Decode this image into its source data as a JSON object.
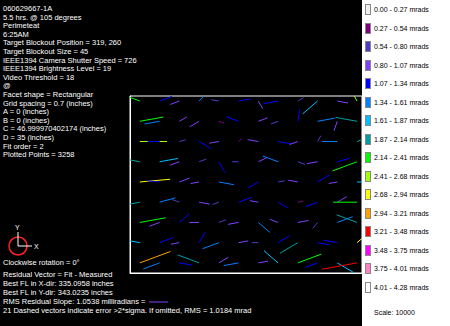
{
  "chart_data": {
    "type": "vector",
    "info_lines": [
      "060629667-1A",
      "5.5 hrs. @ 105 degrees",
      "Perimeteat",
      "6:25AM",
      "Target Blockout Position = 319, 260",
      "Target Blockout Size = 45",
      "IEEE1394 Camera Shutter Speed = 726",
      "IEEE1394 Brightness Level = 19",
      "Video Threshold = 18",
      "@",
      "Facet shape = Rectangular",
      "Grid spacing = 0.7 (inches)",
      "A = 0 (inches)",
      "B = 0 (inches)",
      "C = 46.999970402174 (inches)",
      "D = 35 (inches)",
      "Fit order = 2",
      "Plotted Points = 3258"
    ],
    "footer_lines": [
      "Clockwise rotation = 0°",
      "Residual Vector = Fit - Measured",
      "Best FL in X-dir: 335.0958 inches",
      "Best FL in Y-dir: 343.0235 inches",
      "RMS Residual Slope: 1.0538 milliradians =",
      "21 Dashed vectors indicate error >2*sigma. If omitted, RMS = 1.0184 mrad"
    ],
    "scale_note": "Scale: 10000",
    "compass": [
      "X",
      "Y"
    ],
    "xlim": [
      0,
      47
    ],
    "ylim": [
      0,
      35
    ],
    "tick_labels": false,
    "grid": false,
    "color_bins": [
      {
        "range": [
          0.0,
          0.27
        ],
        "label": "0.00 - 0.27 mrads",
        "color": "#f0f0f0"
      },
      {
        "range": [
          0.27,
          0.54
        ],
        "label": "0.27 - 0.54 mrads",
        "color": "#800080"
      },
      {
        "range": [
          0.54,
          0.8
        ],
        "label": "0.54 - 0.80 mrads",
        "color": "#4b3cc8"
      },
      {
        "range": [
          0.8,
          1.07
        ],
        "label": "0.80 - 1.07 mrads",
        "color": "#8040ff"
      },
      {
        "range": [
          1.07,
          1.34
        ],
        "label": "1.07 - 1.34 mrads",
        "color": "#0000ff"
      },
      {
        "range": [
          1.34,
          1.61
        ],
        "label": "1.34 - 1.61 mrads",
        "color": "#0080ff"
      },
      {
        "range": [
          1.61,
          1.87
        ],
        "label": "1.61 - 1.87 mrads",
        "color": "#00c0ff"
      },
      {
        "range": [
          1.87,
          2.14
        ],
        "label": "1.87 - 2.14 mrads",
        "color": "#00a0a0"
      },
      {
        "range": [
          2.14,
          2.41
        ],
        "label": "2.14 - 2.41 mrads",
        "color": "#00ff00"
      },
      {
        "range": [
          2.41,
          2.68
        ],
        "label": "2.41 - 2.68 mrads",
        "color": "#a0ff00"
      },
      {
        "range": [
          2.68,
          2.94
        ],
        "label": "2.68 - 2.94 mrads",
        "color": "#ffff00"
      },
      {
        "range": [
          2.94,
          3.21
        ],
        "label": "2.94 - 3.21 mrads",
        "color": "#ffa000"
      },
      {
        "range": [
          3.21,
          3.48
        ],
        "label": "3.21 - 3.48 mrads",
        "color": "#ff0000"
      },
      {
        "range": [
          3.48,
          3.75
        ],
        "label": "3.48 - 3.75 mrads",
        "color": "#ff00ff"
      },
      {
        "range": [
          3.75,
          4.01
        ],
        "label": "3.75 - 4.01 mrads",
        "color": "#ff80c0"
      },
      {
        "range": [
          4.01,
          4.28
        ],
        "label": "4.01 - 4.28 mrads",
        "color": "#ffffff"
      }
    ],
    "vectors": {
      "x": [
        2,
        6,
        10,
        14,
        18,
        22,
        26,
        30,
        34,
        38,
        42,
        46,
        2,
        6,
        10,
        14,
        18,
        22,
        26,
        30,
        34,
        38,
        42,
        46,
        2,
        6,
        10,
        14,
        18,
        22,
        26,
        30,
        34,
        38,
        42,
        46,
        2,
        6,
        10,
        14,
        18,
        22,
        26,
        30,
        34,
        38,
        42,
        46,
        2,
        6,
        10,
        14,
        18,
        26,
        30,
        34,
        38,
        42,
        46,
        2,
        6,
        10,
        14,
        18,
        22,
        26,
        30,
        34,
        38,
        42,
        46,
        2,
        6,
        10,
        14,
        18,
        22,
        26,
        30,
        34,
        38,
        42,
        46,
        2,
        6,
        10,
        14,
        18,
        22,
        26,
        30,
        34,
        38,
        42,
        46,
        2,
        6,
        10,
        14,
        18,
        22,
        26,
        30,
        34,
        38,
        42,
        46
      ],
      "y": [
        34,
        34,
        34,
        34,
        34,
        34,
        34,
        34,
        34,
        34,
        34,
        34,
        30,
        30,
        30,
        30,
        30,
        30,
        30,
        30,
        30,
        30,
        30,
        30,
        26,
        26,
        26,
        26,
        26,
        26,
        26,
        26,
        26,
        26,
        26,
        26,
        22,
        22,
        22,
        22,
        22,
        22,
        22,
        22,
        22,
        22,
        22,
        22,
        18,
        18,
        18,
        18,
        18,
        18,
        18,
        18,
        18,
        18,
        18,
        14,
        14,
        14,
        14,
        14,
        14,
        14,
        14,
        14,
        14,
        14,
        14,
        10,
        10,
        10,
        10,
        10,
        10,
        10,
        10,
        10,
        10,
        10,
        10,
        6,
        6,
        6,
        6,
        6,
        6,
        6,
        6,
        6,
        6,
        6,
        6,
        2,
        2,
        2,
        2,
        2,
        2,
        2,
        2,
        2,
        2,
        2,
        2
      ],
      "angle": [
        160,
        20,
        200,
        45,
        170,
        10,
        300,
        190,
        30,
        220,
        350,
        120,
        10,
        190,
        30,
        210,
        340,
        160,
        20,
        200,
        80,
        10,
        250,
        170,
        0,
        180,
        15,
        330,
        190,
        40,
        170,
        350,
        200,
        60,
        180,
        20,
        170,
        10,
        200,
        20,
        300,
        180,
        25,
        160,
        340,
        190,
        15,
        200,
        5,
        175,
        20,
        190,
        350,
        210,
        10,
        170,
        30,
        190,
        0,
        190,
        15,
        160,
        350,
        200,
        20,
        170,
        330,
        10,
        200,
        30,
        180,
        10,
        200,
        40,
        180,
        20,
        190,
        320,
        160,
        10,
        230,
        20,
        160,
        170,
        20,
        190,
        60,
        200,
        10,
        180,
        30,
        210,
        350,
        170,
        40,
        20,
        200,
        350,
        160,
        30,
        190,
        10,
        140,
        20,
        200,
        330,
        190
      ],
      "mrad": [
        2.3,
        1.2,
        0.9,
        1.5,
        0.7,
        1.1,
        0.8,
        1.3,
        0.6,
        1.8,
        1.0,
        2.6,
        2.2,
        1.4,
        0.8,
        1.0,
        0.5,
        1.2,
        0.9,
        0.7,
        1.1,
        1.6,
        0.9,
        2.0,
        2.5,
        1.1,
        0.6,
        1.3,
        0.9,
        0.4,
        1.0,
        1.2,
        0.8,
        0.6,
        1.4,
        1.9,
        2.0,
        1.7,
        0.9,
        0.7,
        1.1,
        0.6,
        0.9,
        1.5,
        0.7,
        1.0,
        1.2,
        2.4,
        2.8,
        1.2,
        1.0,
        0.8,
        1.4,
        1.1,
        0.6,
        0.9,
        1.3,
        0.8,
        1.7,
        2.1,
        1.5,
        0.7,
        1.0,
        0.6,
        1.3,
        0.8,
        1.1,
        0.5,
        1.2,
        1.0,
        2.2,
        2.4,
        1.0,
        1.2,
        0.9,
        0.7,
        1.0,
        1.4,
        0.8,
        1.0,
        0.7,
        1.5,
        2.0,
        1.8,
        1.3,
        0.8,
        1.1,
        1.6,
        0.9,
        0.6,
        1.2,
        1.9,
        1.1,
        1.3,
        2.7,
        3.0,
        1.6,
        1.2,
        2.1,
        1.0,
        1.4,
        0.9,
        1.7,
        2.3,
        1.2,
        1.8,
        3.3
      ]
    }
  }
}
